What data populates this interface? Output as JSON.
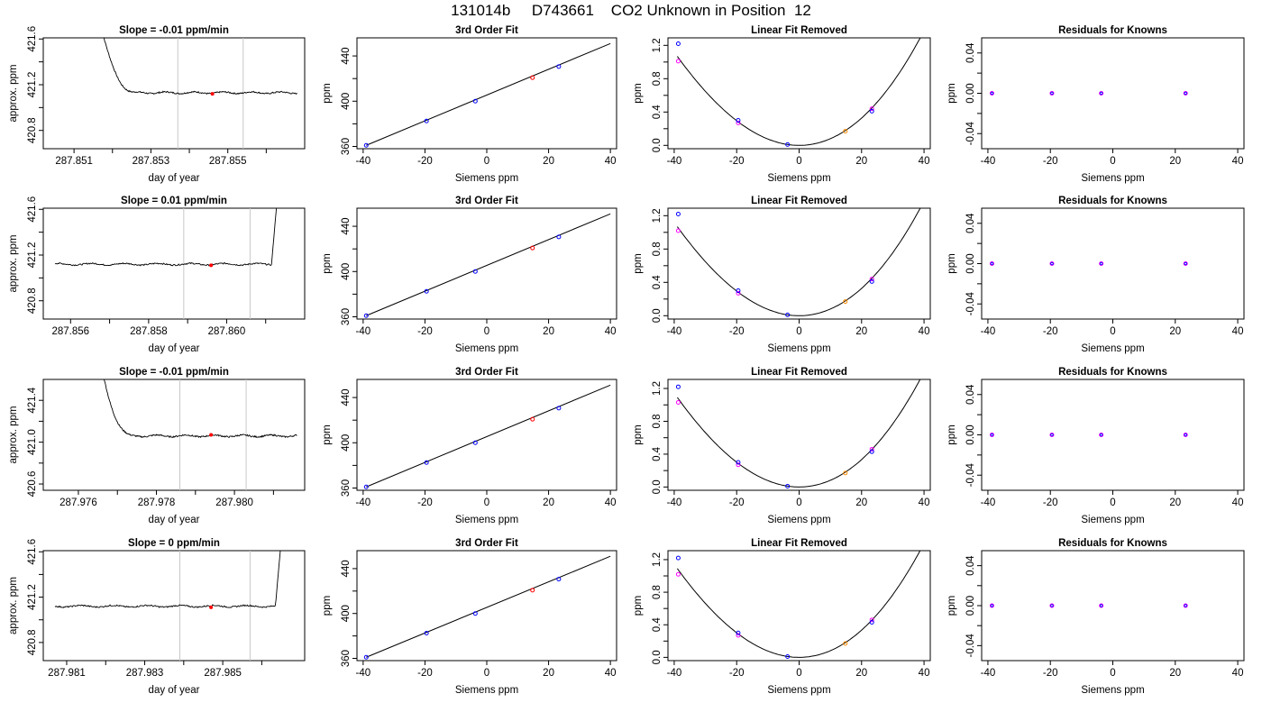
{
  "page_title": "131014b     D743661    CO2 Unknown in Position  12",
  "colors": {
    "axis": "#000000",
    "trace": "#000000",
    "vline": "#c8c8c8",
    "point_red": "#ff0000",
    "point_blue": "#0000ff",
    "point_magenta": "#ff00ff",
    "point_orange": "#ff8c00"
  },
  "chart_data": [
    {
      "type": "line",
      "panel": "timeseries",
      "row": 1,
      "title": "Slope =  -0.01  ppm/min",
      "xlabel": "day of year",
      "ylabel": "approx. ppm",
      "xlim": [
        287.8502,
        287.857
      ],
      "ylim": [
        420.64,
        421.61
      ],
      "xticks": [
        287.851,
        287.852,
        287.853,
        287.854,
        287.855,
        287.856
      ],
      "xtick_labels": [
        "287.851",
        "",
        "287.853",
        "",
        "287.855",
        ""
      ],
      "yticks": [
        420.8,
        421.0,
        421.2,
        421.4,
        421.6
      ],
      "ytick_labels": [
        "420.8",
        "",
        "421.2",
        "",
        "421.6"
      ],
      "vlines": [
        287.8537,
        287.8554
      ],
      "trace": {
        "x_start": 287.8517,
        "x_end": 287.8568,
        "spike_y": 421.61,
        "spike_end_x": 287.8522,
        "level": 421.13,
        "noise": 0.012
      },
      "marker": {
        "x": 287.8546,
        "y": 421.12
      }
    },
    {
      "type": "line",
      "panel": "timeseries",
      "row": 2,
      "title": "Slope =  0.01  ppm/min",
      "xlabel": "day of year",
      "ylabel": "approx. ppm",
      "xlim": [
        287.8553,
        287.862
      ],
      "ylim": [
        420.64,
        421.61
      ],
      "xticks": [
        287.856,
        287.857,
        287.858,
        287.859,
        287.86,
        287.861
      ],
      "xtick_labels": [
        "287.856",
        "",
        "287.858",
        "",
        "287.860",
        ""
      ],
      "yticks": [
        420.8,
        421.0,
        421.2,
        421.4,
        421.6
      ],
      "ytick_labels": [
        "420.8",
        "",
        "421.2",
        "",
        "421.6"
      ],
      "vlines": [
        287.8589,
        287.8606
      ],
      "trace": {
        "x_start": 287.8556,
        "x_end": 287.8614,
        "spike_y": 421.61,
        "spike_end_x": 287.8612,
        "level": 421.12,
        "noise": 0.012,
        "spike_at_end": true
      },
      "marker": {
        "x": 287.8596,
        "y": 421.11
      }
    },
    {
      "type": "line",
      "panel": "timeseries",
      "row": 3,
      "title": "Slope =  -0.01  ppm/min",
      "xlabel": "day of year",
      "ylabel": "approx. ppm",
      "xlim": [
        287.9751,
        287.9818
      ],
      "ylim": [
        420.54,
        421.6
      ],
      "xticks": [
        287.976,
        287.977,
        287.978,
        287.979,
        287.98,
        287.981
      ],
      "xtick_labels": [
        "287.976",
        "",
        "287.978",
        "",
        "287.980",
        ""
      ],
      "yticks": [
        420.6,
        420.8,
        421.0,
        421.2,
        421.4
      ],
      "ytick_labels": [
        "420.6",
        "",
        "421.0",
        "",
        "421.4"
      ],
      "vlines": [
        287.9786,
        287.9803
      ],
      "trace": {
        "x_start": 287.9766,
        "x_end": 287.9816,
        "spike_y": 421.6,
        "spike_end_x": 287.977,
        "level": 421.06,
        "noise": 0.014
      },
      "marker": {
        "x": 287.9794,
        "y": 421.07
      }
    },
    {
      "type": "line",
      "panel": "timeseries",
      "row": 4,
      "title": "Slope =  0  ppm/min",
      "xlabel": "day of year",
      "ylabel": "approx. ppm",
      "xlim": [
        287.9804,
        287.9871
      ],
      "ylim": [
        420.64,
        421.61
      ],
      "xticks": [
        287.981,
        287.982,
        287.983,
        287.984,
        287.985,
        287.986
      ],
      "xtick_labels": [
        "287.981",
        "",
        "287.983",
        "",
        "287.985",
        ""
      ],
      "yticks": [
        420.8,
        421.0,
        421.2,
        421.4,
        421.6
      ],
      "ytick_labels": [
        "420.8",
        "",
        "421.2",
        "",
        "421.6"
      ],
      "vlines": [
        287.9839,
        287.9857
      ],
      "trace": {
        "x_start": 287.9807,
        "x_end": 287.9865,
        "spike_y": 421.61,
        "spike_end_x": 287.9864,
        "level": 421.12,
        "noise": 0.012,
        "spike_at_end": true
      },
      "marker": {
        "x": 287.9847,
        "y": 421.11
      }
    },
    {
      "type": "scatter",
      "panel": "fit",
      "row": 1,
      "title": "3rd Order Fit",
      "xlabel": "Siemens ppm",
      "ylabel": "ppm",
      "xlim": [
        -42,
        42
      ],
      "ylim": [
        358,
        456
      ],
      "xticks": [
        -40,
        -20,
        0,
        20,
        40
      ],
      "yticks": [
        360,
        380,
        400,
        420,
        440
      ],
      "ytick_labels": [
        "360",
        "",
        "400",
        "",
        "440"
      ],
      "line_x": [
        -39,
        40
      ],
      "line_y": [
        361,
        451
      ],
      "blue": [
        [
          -39,
          361
        ],
        [
          -19.5,
          382.5
        ],
        [
          -3.7,
          400
        ],
        [
          23.3,
          430.6
        ]
      ],
      "red": [
        [
          14.8,
          420.8
        ]
      ]
    },
    {
      "type": "scatter",
      "panel": "fit",
      "row": 2,
      "title": "3rd Order Fit",
      "xlabel": "Siemens ppm",
      "ylabel": "ppm",
      "xlim": [
        -42,
        42
      ],
      "ylim": [
        358,
        456
      ],
      "xticks": [
        -40,
        -20,
        0,
        20,
        40
      ],
      "yticks": [
        360,
        380,
        400,
        420,
        440
      ],
      "ytick_labels": [
        "360",
        "",
        "400",
        "",
        "440"
      ],
      "line_x": [
        -39,
        40
      ],
      "line_y": [
        361,
        451
      ],
      "blue": [
        [
          -39,
          361
        ],
        [
          -19.5,
          382.5
        ],
        [
          -3.7,
          400
        ],
        [
          23.3,
          430.6
        ]
      ],
      "red": [
        [
          14.8,
          420.8
        ]
      ]
    },
    {
      "type": "scatter",
      "panel": "fit",
      "row": 3,
      "title": "3rd Order Fit",
      "xlabel": "Siemens ppm",
      "ylabel": "ppm",
      "xlim": [
        -42,
        42
      ],
      "ylim": [
        358,
        456
      ],
      "xticks": [
        -40,
        -20,
        0,
        20,
        40
      ],
      "yticks": [
        360,
        380,
        400,
        420,
        440
      ],
      "ytick_labels": [
        "360",
        "",
        "400",
        "",
        "440"
      ],
      "line_x": [
        -39,
        40
      ],
      "line_y": [
        361,
        451
      ],
      "blue": [
        [
          -39,
          361
        ],
        [
          -19.5,
          382.5
        ],
        [
          -3.7,
          400
        ],
        [
          23.3,
          430.6
        ]
      ],
      "red": [
        [
          14.8,
          420.8
        ]
      ]
    },
    {
      "type": "scatter",
      "panel": "fit",
      "row": 4,
      "title": "3rd Order Fit",
      "xlabel": "Siemens ppm",
      "ylabel": "ppm",
      "xlim": [
        -42,
        42
      ],
      "ylim": [
        358,
        456
      ],
      "xticks": [
        -40,
        -20,
        0,
        20,
        40
      ],
      "yticks": [
        360,
        380,
        400,
        420,
        440
      ],
      "ytick_labels": [
        "360",
        "",
        "400",
        "",
        "440"
      ],
      "line_x": [
        -39,
        40
      ],
      "line_y": [
        361,
        451
      ],
      "blue": [
        [
          -39,
          361
        ],
        [
          -19.5,
          382.5
        ],
        [
          -3.7,
          400
        ],
        [
          23.3,
          430.6
        ]
      ],
      "red": [
        [
          14.8,
          420.8
        ]
      ]
    },
    {
      "type": "scatter",
      "panel": "linear_removed",
      "row": 1,
      "title": "Linear Fit Removed",
      "xlabel": "Siemens ppm",
      "ylabel": "ppm",
      "xlim": [
        -42,
        42
      ],
      "ylim": [
        -0.04,
        1.29
      ],
      "xticks": [
        -40,
        -20,
        0,
        20,
        40
      ],
      "yticks": [
        0.0,
        0.2,
        0.4,
        0.6,
        0.8,
        1.0,
        1.2
      ],
      "ytick_labels": [
        "0.0",
        "",
        "0.4",
        "",
        "0.8",
        "",
        "1.2"
      ],
      "curve": {
        "a": 0.00078,
        "b": 2e-06,
        "c": 0.0,
        "x_from": -39,
        "x_to": 40
      },
      "blue": [
        [
          -38.7,
          1.22
        ],
        [
          -19.5,
          0.3
        ],
        [
          -3.7,
          0.01
        ],
        [
          23.3,
          0.41
        ]
      ],
      "magenta": [
        [
          -38.7,
          1.01
        ],
        [
          -19.5,
          0.27
        ],
        [
          23.3,
          0.44
        ]
      ],
      "orange": [
        [
          14.8,
          0.17
        ]
      ]
    },
    {
      "type": "scatter",
      "panel": "linear_removed",
      "row": 2,
      "title": "Linear Fit Removed",
      "xlabel": "Siemens ppm",
      "ylabel": "ppm",
      "xlim": [
        -42,
        42
      ],
      "ylim": [
        -0.04,
        1.29
      ],
      "xticks": [
        -40,
        -20,
        0,
        20,
        40
      ],
      "yticks": [
        0.0,
        0.2,
        0.4,
        0.6,
        0.8,
        1.0,
        1.2
      ],
      "ytick_labels": [
        "0.0",
        "",
        "0.4",
        "",
        "0.8",
        "",
        "1.2"
      ],
      "curve": {
        "a": 0.00078,
        "b": 2e-06,
        "c": 0.0,
        "x_from": -39,
        "x_to": 40
      },
      "blue": [
        [
          -38.7,
          1.22
        ],
        [
          -19.5,
          0.3
        ],
        [
          -3.7,
          0.01
        ],
        [
          23.3,
          0.41
        ]
      ],
      "magenta": [
        [
          -38.7,
          1.02
        ],
        [
          -19.5,
          0.27
        ],
        [
          23.3,
          0.44
        ]
      ],
      "orange": [
        [
          14.8,
          0.17
        ]
      ]
    },
    {
      "type": "scatter",
      "panel": "linear_removed",
      "row": 3,
      "title": "Linear Fit Removed",
      "xlabel": "Siemens ppm",
      "ylabel": "ppm",
      "xlim": [
        -42,
        42
      ],
      "ylim": [
        -0.04,
        1.31
      ],
      "xticks": [
        -40,
        -20,
        0,
        20,
        40
      ],
      "yticks": [
        0.0,
        0.2,
        0.4,
        0.6,
        0.8,
        1.0,
        1.2
      ],
      "ytick_labels": [
        "0.0",
        "",
        "0.4",
        "",
        "0.8",
        "",
        "1.2"
      ],
      "curve": {
        "a": 0.000795,
        "b": 2e-06,
        "c": 0.0,
        "x_from": -39,
        "x_to": 40
      },
      "blue": [
        [
          -38.7,
          1.22
        ],
        [
          -19.5,
          0.3
        ],
        [
          -3.7,
          0.01
        ],
        [
          23.3,
          0.43
        ]
      ],
      "magenta": [
        [
          -38.7,
          1.03
        ],
        [
          -19.5,
          0.27
        ],
        [
          23.3,
          0.46
        ]
      ],
      "orange": [
        [
          14.8,
          0.17
        ]
      ]
    },
    {
      "type": "scatter",
      "panel": "linear_removed",
      "row": 4,
      "title": "Linear Fit Removed",
      "xlabel": "Siemens ppm",
      "ylabel": "ppm",
      "xlim": [
        -42,
        42
      ],
      "ylim": [
        -0.04,
        1.31
      ],
      "xticks": [
        -40,
        -20,
        0,
        20,
        40
      ],
      "yticks": [
        0.0,
        0.2,
        0.4,
        0.6,
        0.8,
        1.0,
        1.2
      ],
      "ytick_labels": [
        "0.0",
        "",
        "0.4",
        "",
        "0.8",
        "",
        "1.2"
      ],
      "curve": {
        "a": 0.000795,
        "b": 2e-06,
        "c": 0.0,
        "x_from": -39,
        "x_to": 40
      },
      "blue": [
        [
          -38.7,
          1.22
        ],
        [
          -19.5,
          0.3
        ],
        [
          -3.7,
          0.01
        ],
        [
          23.3,
          0.43
        ]
      ],
      "magenta": [
        [
          -38.7,
          1.02
        ],
        [
          -19.5,
          0.27
        ],
        [
          23.3,
          0.46
        ]
      ],
      "orange": [
        [
          14.8,
          0.17
        ]
      ]
    },
    {
      "type": "scatter",
      "panel": "residuals",
      "row": 1,
      "title": "Residuals for Knowns",
      "xlabel": "Siemens ppm",
      "ylabel": "ppm",
      "xlim": [
        -42,
        42
      ],
      "ylim": [
        -0.055,
        0.055
      ],
      "xticks": [
        -40,
        -20,
        0,
        20,
        40
      ],
      "yticks": [
        -0.04,
        -0.02,
        0.0,
        0.02,
        0.04
      ],
      "ytick_labels": [
        "-0.04",
        "",
        "0.00",
        "",
        "0.04"
      ],
      "points": [
        [
          -38.7,
          0.0
        ],
        [
          -19.5,
          0.0
        ],
        [
          -3.7,
          0.0
        ],
        [
          23.3,
          0.0
        ]
      ]
    },
    {
      "type": "scatter",
      "panel": "residuals",
      "row": 2,
      "title": "Residuals for Knowns",
      "xlabel": "Siemens ppm",
      "ylabel": "ppm",
      "xlim": [
        -42,
        42
      ],
      "ylim": [
        -0.055,
        0.055
      ],
      "xticks": [
        -40,
        -20,
        0,
        20,
        40
      ],
      "yticks": [
        -0.04,
        -0.02,
        0.0,
        0.02,
        0.04
      ],
      "ytick_labels": [
        "-0.04",
        "",
        "0.00",
        "",
        "0.04"
      ],
      "points": [
        [
          -38.7,
          0.0
        ],
        [
          -19.5,
          0.0
        ],
        [
          -3.7,
          0.0
        ],
        [
          23.3,
          0.0
        ]
      ]
    },
    {
      "type": "scatter",
      "panel": "residuals",
      "row": 3,
      "title": "Residuals for Knowns",
      "xlabel": "Siemens ppm",
      "ylabel": "ppm",
      "xlim": [
        -42,
        42
      ],
      "ylim": [
        -0.055,
        0.055
      ],
      "xticks": [
        -40,
        -20,
        0,
        20,
        40
      ],
      "yticks": [
        -0.04,
        -0.02,
        0.0,
        0.02,
        0.04
      ],
      "ytick_labels": [
        "-0.04",
        "",
        "0.00",
        "",
        "0.04"
      ],
      "points": [
        [
          -38.7,
          0.0
        ],
        [
          -19.5,
          0.0
        ],
        [
          -3.7,
          0.0
        ],
        [
          23.3,
          0.0
        ]
      ]
    },
    {
      "type": "scatter",
      "panel": "residuals",
      "row": 4,
      "title": "Residuals for Knowns",
      "xlabel": "Siemens ppm",
      "ylabel": "ppm",
      "xlim": [
        -42,
        42
      ],
      "ylim": [
        -0.055,
        0.055
      ],
      "xticks": [
        -40,
        -20,
        0,
        20,
        40
      ],
      "yticks": [
        -0.04,
        -0.02,
        0.0,
        0.02,
        0.04
      ],
      "ytick_labels": [
        "-0.04",
        "",
        "0.00",
        "",
        "0.04"
      ],
      "points": [
        [
          -38.7,
          0.0
        ],
        [
          -19.5,
          0.0
        ],
        [
          -3.7,
          0.0
        ],
        [
          23.3,
          0.0
        ]
      ]
    }
  ]
}
